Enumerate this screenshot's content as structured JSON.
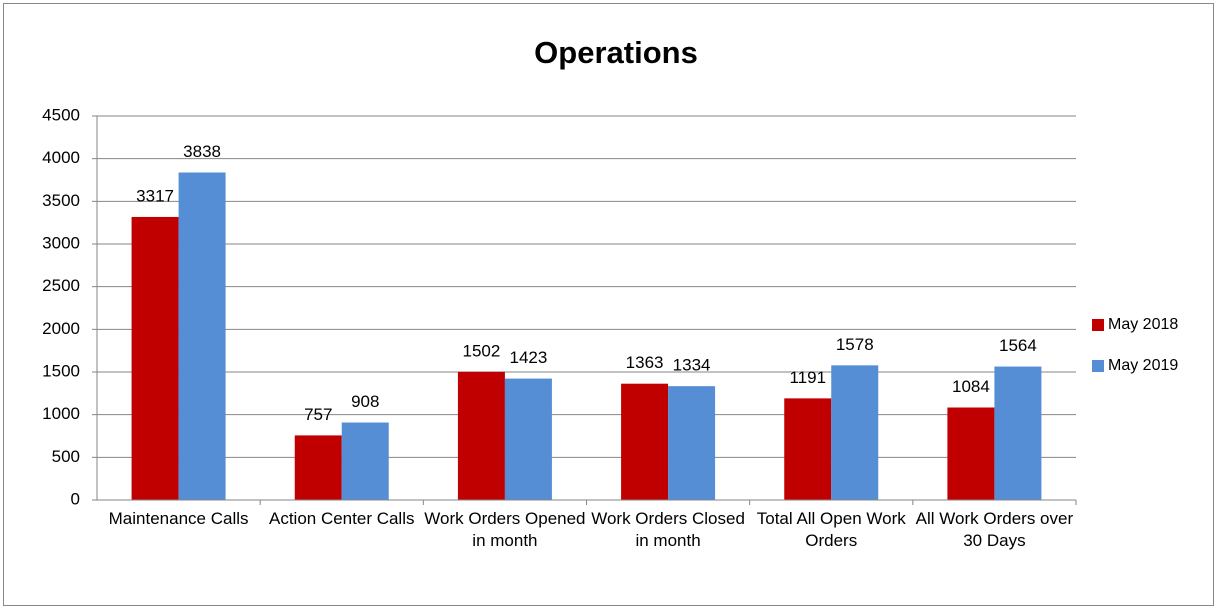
{
  "chart_data": {
    "type": "bar",
    "title": "Operations",
    "categories": [
      "Maintenance Calls",
      "Action Center Calls",
      "Work Orders Opened in month",
      "Work Orders Closed in month",
      "Total All Open Work Orders",
      "All Work Orders over 30 Days"
    ],
    "series": [
      {
        "name": "May 2018",
        "color": "#c00000",
        "values": [
          3317,
          757,
          1502,
          1363,
          1191,
          1084
        ]
      },
      {
        "name": "May 2019",
        "color": "#558ed5",
        "values": [
          3838,
          908,
          1423,
          1334,
          1578,
          1564
        ]
      }
    ],
    "ylim": [
      0,
      4500
    ],
    "yticks": [
      0,
      500,
      1000,
      1500,
      2000,
      2500,
      3000,
      3500,
      4000,
      4500
    ],
    "grid": true,
    "legend": "right"
  }
}
